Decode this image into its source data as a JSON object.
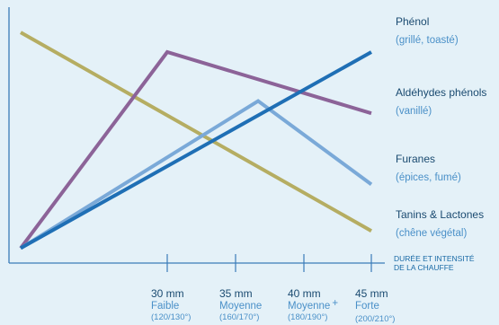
{
  "chart_data": {
    "type": "line",
    "x": [
      {
        "main": "",
        "sub": "",
        "paren": ""
      },
      {
        "main": "30 mm",
        "sub": "Faible",
        "paren": "(120/130°)"
      },
      {
        "main": "35 mm",
        "sub": "Moyenne",
        "paren": "(160/170°)"
      },
      {
        "main": "40 mm",
        "sub": "Moyenne",
        "plus": "+",
        "paren": "(180/190°)"
      },
      {
        "main": "45 mm",
        "sub": "Forte",
        "paren": "(200/210°)"
      }
    ],
    "xlabel": [
      "DURÉE ET INTENSITÉ",
      "DE LA CHAUFFE"
    ],
    "ylabel": "",
    "grid": false,
    "series": [
      {
        "key": "tanins",
        "name": "Tanins & Lactones",
        "sub": "(chêne végétal)",
        "color": "#b5ad62",
        "points": [
          [
            0,
            93
          ],
          [
            4,
            12
          ]
        ]
      },
      {
        "key": "aldehydes",
        "name": "Aldéhydes phénols",
        "sub": "(vanillé)",
        "color": "#8c6398",
        "points": [
          [
            0,
            5
          ],
          [
            1,
            85
          ],
          [
            4,
            60
          ]
        ]
      },
      {
        "key": "furanes",
        "name": "Furanes",
        "sub": "(épices, fumé)",
        "color": "#7aa9d8",
        "points": [
          [
            0,
            5
          ],
          [
            2.33,
            65
          ],
          [
            4,
            31
          ]
        ]
      },
      {
        "key": "phenol",
        "name": "Phénol",
        "sub": "(grillé, toasté)",
        "color": "#1f6fb5",
        "points": [
          [
            0,
            5
          ],
          [
            4,
            85
          ]
        ]
      }
    ],
    "legend_order": [
      "phenol",
      "aldehydes",
      "furanes",
      "tanins"
    ]
  }
}
